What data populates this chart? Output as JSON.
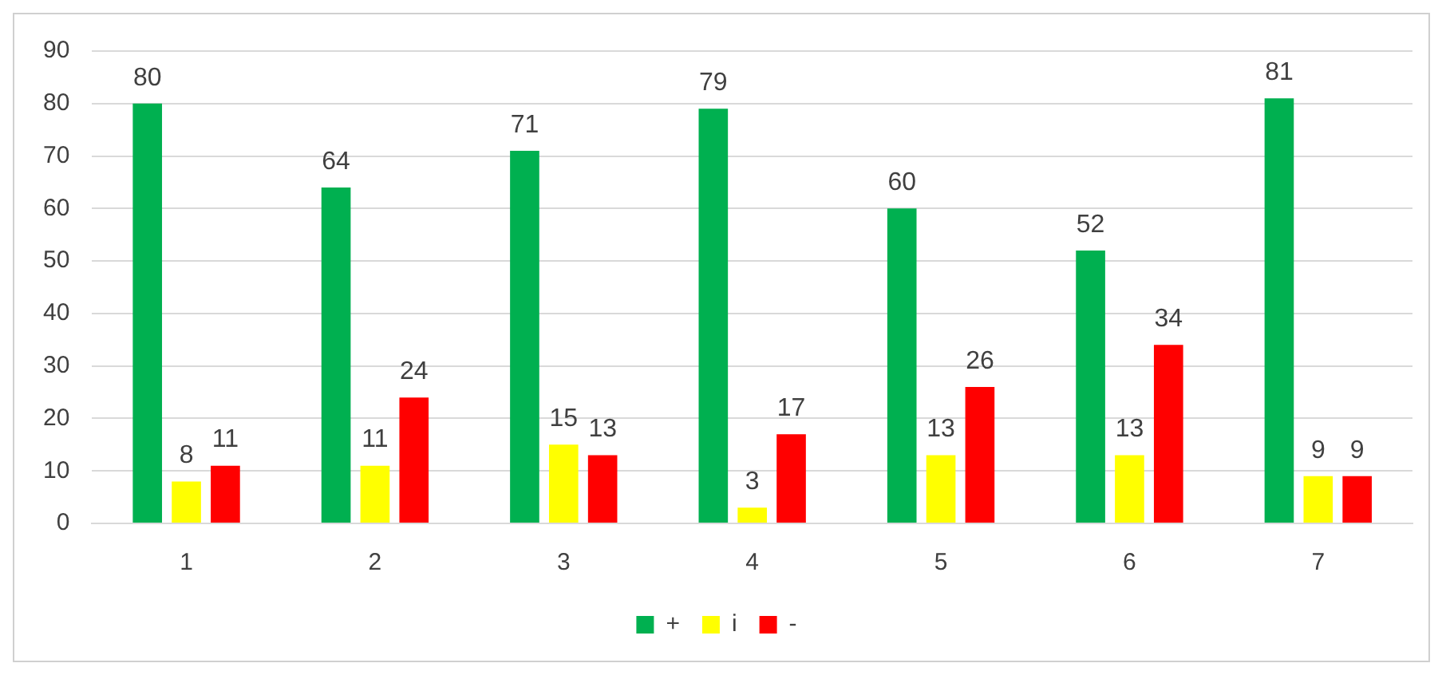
{
  "chart_data": {
    "type": "bar",
    "categories": [
      "1",
      "2",
      "3",
      "4",
      "5",
      "6",
      "7"
    ],
    "series": [
      {
        "name": "+",
        "color": "#00b050",
        "values": [
          80,
          64,
          71,
          79,
          60,
          52,
          81
        ]
      },
      {
        "name": "i",
        "color": "#ffff00",
        "values": [
          8,
          11,
          15,
          3,
          13,
          13,
          9
        ]
      },
      {
        "name": "-",
        "color": "#ff0000",
        "values": [
          11,
          24,
          13,
          17,
          26,
          34,
          9
        ]
      }
    ],
    "ylim": [
      0,
      90
    ],
    "yticks": [
      0,
      10,
      20,
      30,
      40,
      50,
      60,
      70,
      80,
      90
    ],
    "grid": "y",
    "legend": "bottom",
    "data_labels": true
  }
}
